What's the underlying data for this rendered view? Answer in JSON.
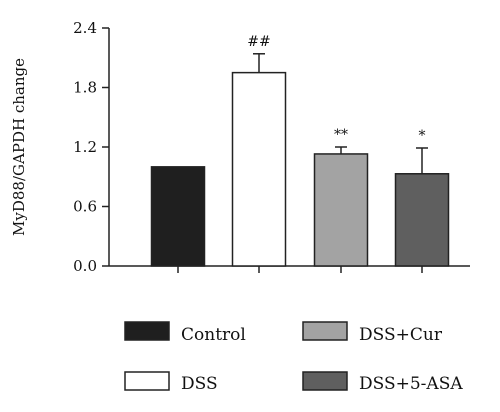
{
  "chart_data": {
    "type": "bar",
    "ylabel": "MyD88/GAPDH change",
    "ylim": [
      0,
      2.4
    ],
    "yticks": [
      "0.0",
      "0.6",
      "1.2",
      "1.8",
      "2.4"
    ],
    "categories": [
      "Control",
      "DSS",
      "DSS+Cur",
      "DSS+5-ASA"
    ],
    "values": [
      1.0,
      1.95,
      1.13,
      0.93
    ],
    "errors": [
      0,
      0.19,
      0.07,
      0.26
    ],
    "annotations": [
      "",
      "##",
      "**",
      "*"
    ],
    "colors": [
      "#1f1f1f",
      "#ffffff",
      "#a3a3a3",
      "#5f5f5f"
    ],
    "legend_position": "bottom",
    "grid": false
  }
}
